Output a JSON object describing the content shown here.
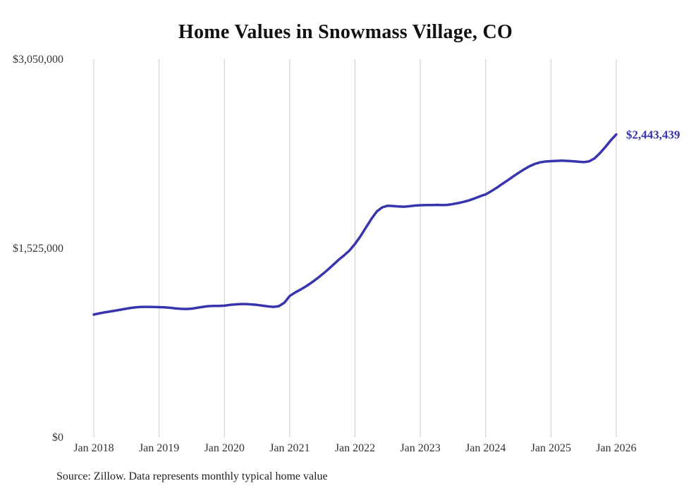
{
  "title": "Home Values in Snowmass Village, CO",
  "source_note": "Source: Zillow. Data represents monthly typical home value",
  "annotation": {
    "end_value_label": "$2,443,439"
  },
  "colors": {
    "line": "#3734ad",
    "grid": "#cbcbcb",
    "axis_text": "#333333",
    "title_text": "#111111"
  },
  "chart_data": {
    "type": "line",
    "title": "Home Values in Snowmass Village, CO",
    "xlabel": "",
    "ylabel": "",
    "ylim": [
      0,
      3050000
    ],
    "y_tick_values": [
      0,
      1525000,
      3050000
    ],
    "y_tick_labels": [
      "$0",
      "$1,525,000",
      "$3,050,000"
    ],
    "x_tick_labels": [
      "Jan 2018",
      "Jan 2019",
      "Jan 2020",
      "Jan 2021",
      "Jan 2022",
      "Jan 2023",
      "Jan 2024",
      "Jan 2025",
      "Jan 2026"
    ],
    "grid": "vertical-only",
    "legend": "none",
    "end_label": "$2,443,439",
    "series": [
      {
        "name": "Monthly typical home value",
        "start_month": "2018-01",
        "end_month": "2026-01",
        "values": [
          990000,
          1000000,
          1008000,
          1015000,
          1022000,
          1030000,
          1038000,
          1045000,
          1050000,
          1052000,
          1052000,
          1051000,
          1050000,
          1048000,
          1045000,
          1040000,
          1036000,
          1035000,
          1038000,
          1045000,
          1052000,
          1058000,
          1060000,
          1060000,
          1062000,
          1068000,
          1072000,
          1075000,
          1075000,
          1072000,
          1068000,
          1062000,
          1056000,
          1052000,
          1058000,
          1085000,
          1140000,
          1168000,
          1192000,
          1218000,
          1248000,
          1280000,
          1315000,
          1352000,
          1392000,
          1432000,
          1468000,
          1508000,
          1560000,
          1622000,
          1692000,
          1762000,
          1822000,
          1855000,
          1868000,
          1866000,
          1862000,
          1860000,
          1864000,
          1869000,
          1872000,
          1873000,
          1874000,
          1875000,
          1873000,
          1875000,
          1882000,
          1890000,
          1900000,
          1912000,
          1928000,
          1945000,
          1960000,
          1985000,
          2012000,
          2042000,
          2072000,
          2102000,
          2132000,
          2160000,
          2185000,
          2205000,
          2218000,
          2225000,
          2228000,
          2230000,
          2232000,
          2230000,
          2227000,
          2224000,
          2220000,
          2226000,
          2250000,
          2292000,
          2342000,
          2396000,
          2443439
        ]
      }
    ]
  }
}
